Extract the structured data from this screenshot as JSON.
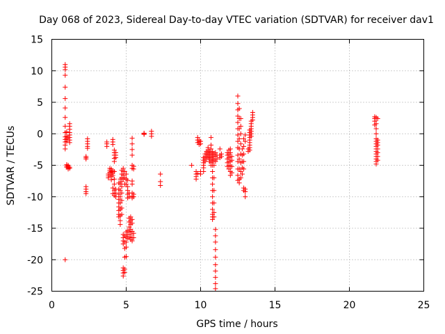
{
  "chart_data": {
    "type": "scatter",
    "title": "Day 068 of 2023, Sidereal Day-to-day VTEC variation (SDTVAR) for receiver dav1",
    "xlabel": "GPS time / hours",
    "ylabel": "SDTVAR / TECUs",
    "xlim": [
      0,
      25
    ],
    "ylim": [
      -25,
      15
    ],
    "xticks": [
      0,
      5,
      10,
      15,
      20,
      25
    ],
    "yticks": [
      15,
      10,
      5,
      0,
      -5,
      -10,
      -15,
      -20,
      -25
    ],
    "xtick_labels": [
      "0",
      "5",
      "10",
      "15",
      "20",
      "25"
    ],
    "ytick_labels": [
      "15",
      "10",
      "5",
      "0",
      "-5",
      "-10",
      "-15",
      "-20",
      "-25"
    ],
    "grid": true,
    "marker": "plus",
    "color": "#ff0000",
    "clusters": [
      {
        "x": 0.9,
        "y": [
          11,
          10.6,
          10.2,
          9.3,
          7.4,
          5.6,
          4.1,
          2.6,
          1.2,
          0.2,
          -0.5,
          -0.9,
          -1.3,
          -1.8,
          -2.4,
          -20.0
        ]
      },
      {
        "x": 1.0,
        "y": [
          0.3,
          -0.4,
          -0.8,
          -1.2,
          -4.9,
          -5.1,
          -5.3
        ]
      },
      {
        "x": 1.1,
        "y": [
          -0.6,
          -5.0,
          -5.2,
          -5.4,
          -5.6
        ]
      },
      {
        "x": 1.2,
        "y": [
          1.6,
          1.2,
          0.7,
          0.2,
          -0.2,
          -0.6,
          -1.0,
          -1.4,
          -5.3,
          -5.5
        ]
      },
      {
        "x": 2.3,
        "y": [
          -3.6,
          -3.8,
          -4.0,
          -8.4,
          -8.8,
          -9.2,
          -9.5
        ]
      },
      {
        "x": 2.4,
        "y": [
          -0.8,
          -1.2,
          -1.6,
          -2.0,
          -2.3
        ]
      },
      {
        "x": 3.7,
        "y": [
          -1.3,
          -1.6,
          -2.0
        ]
      },
      {
        "x": 3.8,
        "y": [
          -6.4,
          -6.7,
          -7.0
        ]
      },
      {
        "x": 3.9,
        "y": [
          -5.5,
          -5.8,
          -6.1,
          -6.4
        ]
      },
      {
        "x": 4.0,
        "y": [
          -5.6,
          -6.0,
          -6.4,
          -6.8,
          -7.3
        ]
      },
      {
        "x": 4.1,
        "y": [
          -0.9,
          -1.3,
          -1.7,
          -5.9,
          -6.2,
          -6.6,
          -8.6,
          -9.5
        ]
      },
      {
        "x": 4.2,
        "y": [
          -2.6,
          -3.0,
          -3.4,
          -3.9,
          -4.4,
          -6.0,
          -7.2,
          -8.0,
          -9.0,
          -9.8
        ]
      },
      {
        "x": 4.3,
        "y": [
          -3.0,
          -3.4,
          -3.8,
          -8.8,
          -9.4,
          -10.0
        ]
      },
      {
        "x": 4.5,
        "y": [
          -7.8,
          -8.8,
          -9.6,
          -10.4,
          -11.0,
          -11.6,
          -12.2,
          -12.8,
          -13.2
        ]
      },
      {
        "x": 4.6,
        "y": [
          -7.2,
          -8.0,
          -9.0,
          -10.0,
          -11.0,
          -12.0,
          -13.0,
          -13.8,
          -14.4
        ]
      },
      {
        "x": 4.7,
        "y": [
          -5.8,
          -6.4,
          -7.0,
          -7.6,
          -8.4,
          -9.4,
          -10.6,
          -11.8,
          -12.8
        ]
      },
      {
        "x": 4.8,
        "y": [
          -5.5,
          -6.0,
          -6.6,
          -7.2,
          -16.0,
          -16.5,
          -17.0,
          -17.5,
          -21.3,
          -21.7,
          -22.1,
          -22.6
        ]
      },
      {
        "x": 4.9,
        "y": [
          -6.0,
          -7.0,
          -8.0,
          -16.2,
          -17.2,
          -18.2,
          -19.6,
          -21.5,
          -22.0
        ]
      },
      {
        "x": 5.0,
        "y": [
          -6.4,
          -7.2,
          -8.0,
          -15.6,
          -16.4,
          -17.2,
          -18.0,
          -19.5
        ]
      },
      {
        "x": 5.1,
        "y": [
          -7.4,
          -8.4,
          -9.0,
          -9.6,
          -10.2,
          -15.4,
          -16.0,
          -16.6
        ]
      },
      {
        "x": 5.2,
        "y": [
          -9.4,
          -10.0,
          -13.4,
          -14.0,
          -14.8,
          -15.6,
          -16.4
        ]
      },
      {
        "x": 5.3,
        "y": [
          -13.2,
          -13.8,
          -14.4,
          -15.2,
          -16.0,
          -16.8
        ]
      },
      {
        "x": 5.4,
        "y": [
          -0.7,
          -1.6,
          -2.5,
          -3.4,
          -5.0,
          -5.5,
          -7.5,
          -8.0,
          -9.4,
          -9.9,
          -10.2,
          -13.6,
          -14.2,
          -15.5,
          -16.5,
          -17.0
        ]
      },
      {
        "x": 5.5,
        "y": [
          -5.2,
          -5.6,
          -9.6,
          -10.0,
          -15.8,
          -16.5
        ]
      },
      {
        "x": 6.2,
        "y": [
          0.1,
          0.0,
          -0.1
        ]
      },
      {
        "x": 6.7,
        "y": [
          0.4,
          0.0,
          -0.4
        ]
      },
      {
        "x": 7.3,
        "y": [
          -6.4,
          -7.6,
          -8.2
        ]
      },
      {
        "x": 9.4,
        "y": [
          -5.0
        ]
      },
      {
        "x": 9.7,
        "y": [
          -6.0,
          -6.4,
          -6.8,
          -7.2
        ]
      },
      {
        "x": 9.8,
        "y": [
          -0.6,
          -1.0,
          -1.4,
          -6.3
        ]
      },
      {
        "x": 9.9,
        "y": [
          -1.0,
          -1.3,
          -1.7
        ]
      },
      {
        "x": 10.0,
        "y": [
          -1.2,
          -1.6,
          -6.0,
          -6.4
        ]
      },
      {
        "x": 10.2,
        "y": [
          -3.8,
          -4.2,
          -4.6,
          -5.0,
          -5.4,
          -6.0
        ]
      },
      {
        "x": 10.3,
        "y": [
          -3.2,
          -3.6,
          -4.0,
          -4.4
        ]
      },
      {
        "x": 10.4,
        "y": [
          -2.8,
          -3.2,
          -3.6,
          -4.0
        ]
      },
      {
        "x": 10.5,
        "y": [
          -2.2,
          -2.6,
          -3.0,
          -3.4,
          -3.8
        ]
      },
      {
        "x": 10.6,
        "y": [
          -2.8,
          -3.2,
          -3.6,
          -4.0,
          -4.4
        ]
      },
      {
        "x": 10.7,
        "y": [
          -0.6,
          -1.8,
          -2.4,
          -3.0,
          -3.4,
          -3.8,
          -4.2,
          -4.6,
          -5.0
        ]
      },
      {
        "x": 10.8,
        "y": [
          -2.8,
          -3.2,
          -3.6,
          -4.0,
          -4.4,
          -5.0,
          -6.0,
          -7.0,
          -8.0,
          -9.0,
          -10.0,
          -11.0,
          -12.0,
          -12.8,
          -13.2,
          -13.6
        ]
      },
      {
        "x": 10.9,
        "y": [
          -3.2,
          -3.6,
          -4.2,
          -5.0,
          -7.0,
          -9.0,
          -11.0,
          -12.5,
          -13.2
        ]
      },
      {
        "x": 11.0,
        "y": [
          -3.0,
          -3.6,
          -4.4,
          -15.2,
          -16.2,
          -17.2,
          -18.4,
          -19.6,
          -20.8,
          -21.8,
          -22.8,
          -23.8,
          -24.6
        ]
      },
      {
        "x": 11.1,
        "y": [
          -3.4,
          -4.0
        ]
      },
      {
        "x": 11.3,
        "y": [
          -2.4,
          -3.4,
          -3.8
        ]
      },
      {
        "x": 11.4,
        "y": [
          -3.2,
          -3.6
        ]
      },
      {
        "x": 11.8,
        "y": [
          -3.0,
          -3.4,
          -4.0,
          -4.6,
          -5.2
        ]
      },
      {
        "x": 11.9,
        "y": [
          -2.6,
          -3.2,
          -3.8,
          -4.4,
          -5.0,
          -5.6
        ]
      },
      {
        "x": 12.0,
        "y": [
          -2.4,
          -3.0,
          -3.6,
          -4.4,
          -5.2,
          -6.0,
          -6.6
        ]
      },
      {
        "x": 12.1,
        "y": [
          -3.6,
          -4.2,
          -5.2,
          -6.2
        ]
      },
      {
        "x": 12.5,
        "y": [
          6.0,
          4.8,
          3.8,
          2.8,
          1.8,
          0.8,
          -0.2,
          -1.2,
          -2.2,
          -3.4,
          -4.4,
          -5.6,
          -6.6,
          -7.4
        ]
      },
      {
        "x": 12.6,
        "y": [
          4.0,
          2.4,
          0.8,
          -0.8,
          -2.4,
          -4.0,
          -5.6,
          -7.2,
          -7.8
        ]
      },
      {
        "x": 12.7,
        "y": [
          2.4,
          1.2,
          0.0,
          -1.6,
          -3.2,
          -4.6,
          -6.0,
          -7.0
        ]
      },
      {
        "x": 12.8,
        "y": [
          -2.4,
          -3.4,
          -4.4,
          -5.4,
          -6.4
        ]
      },
      {
        "x": 12.9,
        "y": [
          -0.8,
          -2.0,
          -3.2,
          -4.4,
          -5.6,
          -8.6,
          -9.0
        ]
      },
      {
        "x": 13.0,
        "y": [
          -0.2,
          -1.2,
          -8.8,
          -9.2,
          -10.0
        ]
      },
      {
        "x": 13.2,
        "y": [
          -2.4,
          -2.8
        ]
      },
      {
        "x": 13.3,
        "y": [
          0.6,
          0.2,
          -0.2,
          -0.6,
          -1.0,
          -1.4,
          -1.8,
          -2.2,
          -2.6
        ]
      },
      {
        "x": 13.4,
        "y": [
          2.0,
          1.6,
          1.2,
          0.8,
          0.4,
          0.0,
          -0.4
        ]
      },
      {
        "x": 13.5,
        "y": [
          3.4,
          3.0,
          2.6,
          2.2
        ]
      },
      {
        "x": 21.7,
        "y": [
          2.7,
          2.4,
          2.0,
          1.4
        ]
      },
      {
        "x": 21.8,
        "y": [
          2.6,
          2.4,
          1.6,
          0.8,
          0.0,
          -0.8,
          -1.2,
          -1.6,
          -2.0,
          -2.4,
          -2.8,
          -3.2,
          -3.6,
          -4.0,
          -4.4,
          -4.8
        ]
      },
      {
        "x": 21.9,
        "y": [
          2.4,
          -1.0,
          -1.4,
          -1.8,
          -2.4,
          -3.0,
          -3.6,
          -4.2
        ]
      }
    ]
  }
}
